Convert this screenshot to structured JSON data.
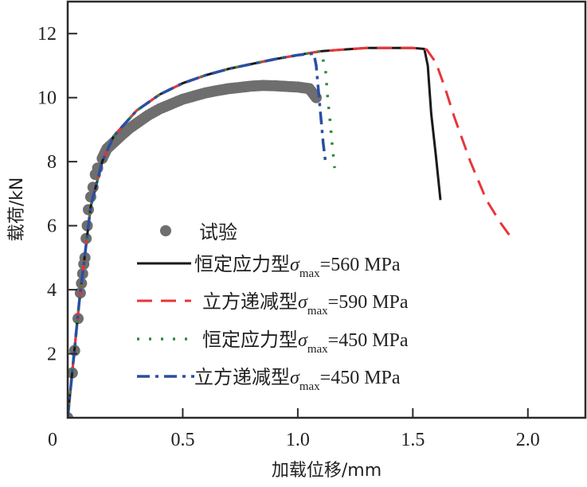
{
  "chart_data": {
    "type": "line",
    "title": "",
    "xlabel": "加载位移/mm",
    "ylabel": "载荷/kN",
    "xlim": [
      0,
      2.25
    ],
    "ylim": [
      0,
      13
    ],
    "origin_label": "0",
    "xticks": [
      0.5,
      1.0,
      1.5,
      2.0
    ],
    "xtick_labels": [
      "0.5",
      "1.0",
      "1.5",
      "2.0"
    ],
    "yticks": [
      2,
      4,
      6,
      8,
      10,
      12
    ],
    "ytick_labels": [
      "2",
      "4",
      "6",
      "8",
      "10",
      "12"
    ],
    "grid": false,
    "legend_position": "center-left",
    "experiment": {
      "name": "试验",
      "color": "#6e6e6e",
      "x": [
        0.0,
        0.02,
        0.03,
        0.045,
        0.055,
        0.06,
        0.065,
        0.07,
        0.075,
        0.08,
        0.085,
        0.09,
        0.1,
        0.11,
        0.12,
        0.13,
        0.15,
        0.17,
        0.2,
        0.23,
        0.27,
        0.31,
        0.35,
        0.4,
        0.45,
        0.5,
        0.55,
        0.6,
        0.65,
        0.7,
        0.75,
        0.8,
        0.85,
        0.9,
        0.95,
        1.0,
        1.05,
        1.08
      ],
      "y": [
        0.0,
        1.4,
        2.1,
        3.1,
        3.9,
        4.2,
        4.5,
        4.8,
        5.0,
        5.6,
        6.0,
        6.5,
        6.9,
        7.2,
        7.6,
        7.8,
        8.1,
        8.4,
        8.6,
        8.8,
        9.05,
        9.25,
        9.45,
        9.65,
        9.8,
        9.95,
        10.05,
        10.15,
        10.22,
        10.28,
        10.32,
        10.36,
        10.38,
        10.37,
        10.35,
        10.33,
        10.28,
        10.0
      ]
    },
    "series": [
      {
        "name": "恒定应力型",
        "sigma": "σ",
        "sub": "max",
        "value_label": "=560 MPa",
        "color": "#1a1a1a",
        "style": "solid",
        "x": [
          0.0,
          0.05,
          0.1,
          0.15,
          0.2,
          0.3,
          0.4,
          0.5,
          0.6,
          0.7,
          0.8,
          0.9,
          1.0,
          1.1,
          1.2,
          1.3,
          1.4,
          1.5,
          1.55,
          1.565,
          1.58,
          1.6,
          1.62
        ],
        "y": [
          0.0,
          3.6,
          6.6,
          8.0,
          8.8,
          9.6,
          10.1,
          10.45,
          10.7,
          10.9,
          11.05,
          11.2,
          11.33,
          11.45,
          11.5,
          11.55,
          11.55,
          11.55,
          11.52,
          11.0,
          9.5,
          8.2,
          6.8
        ]
      },
      {
        "name": "立方递减型",
        "sigma": "σ",
        "sub": "max",
        "value_label": "=590 MPa",
        "color": "#e8353a",
        "style": "dashed",
        "x": [
          0.0,
          0.05,
          0.1,
          0.15,
          0.2,
          0.3,
          0.4,
          0.5,
          0.6,
          0.7,
          0.8,
          0.9,
          1.0,
          1.1,
          1.2,
          1.3,
          1.4,
          1.5,
          1.56,
          1.6,
          1.64,
          1.68,
          1.75,
          1.82,
          1.88,
          1.93
        ],
        "y": [
          0.0,
          3.6,
          6.6,
          8.0,
          8.8,
          9.6,
          10.1,
          10.45,
          10.7,
          10.9,
          11.05,
          11.2,
          11.33,
          11.45,
          11.5,
          11.55,
          11.55,
          11.55,
          11.5,
          11.1,
          10.3,
          9.4,
          8.0,
          6.8,
          6.1,
          5.6
        ]
      },
      {
        "name": "恒定应力型",
        "sigma": "σ",
        "sub": "max",
        "value_label": "=450 MPa",
        "color": "#2e8b3e",
        "style": "dotted",
        "x": [
          0.0,
          0.05,
          0.1,
          0.15,
          0.2,
          0.3,
          0.4,
          0.5,
          0.6,
          0.7,
          0.8,
          0.9,
          1.0,
          1.1,
          1.12,
          1.13,
          1.14,
          1.15,
          1.16
        ],
        "y": [
          0.0,
          3.6,
          6.6,
          8.0,
          8.8,
          9.6,
          10.1,
          10.45,
          10.7,
          10.9,
          11.05,
          11.2,
          11.33,
          11.45,
          10.9,
          10.0,
          9.3,
          8.5,
          7.8
        ]
      },
      {
        "name": "立方递减型",
        "sigma": "σ",
        "sub": "max",
        "value_label": "=450 MPa",
        "color": "#2a4fa0",
        "style": "dashdot",
        "x": [
          0.0,
          0.05,
          0.1,
          0.15,
          0.2,
          0.3,
          0.4,
          0.5,
          0.6,
          0.7,
          0.8,
          0.9,
          1.0,
          1.07,
          1.08,
          1.09,
          1.1,
          1.11,
          1.12
        ],
        "y": [
          0.0,
          3.6,
          6.6,
          8.0,
          8.8,
          9.6,
          10.1,
          10.45,
          10.7,
          10.9,
          11.05,
          11.2,
          11.33,
          11.38,
          11.0,
          10.2,
          9.4,
          8.6,
          8.0
        ]
      }
    ]
  }
}
